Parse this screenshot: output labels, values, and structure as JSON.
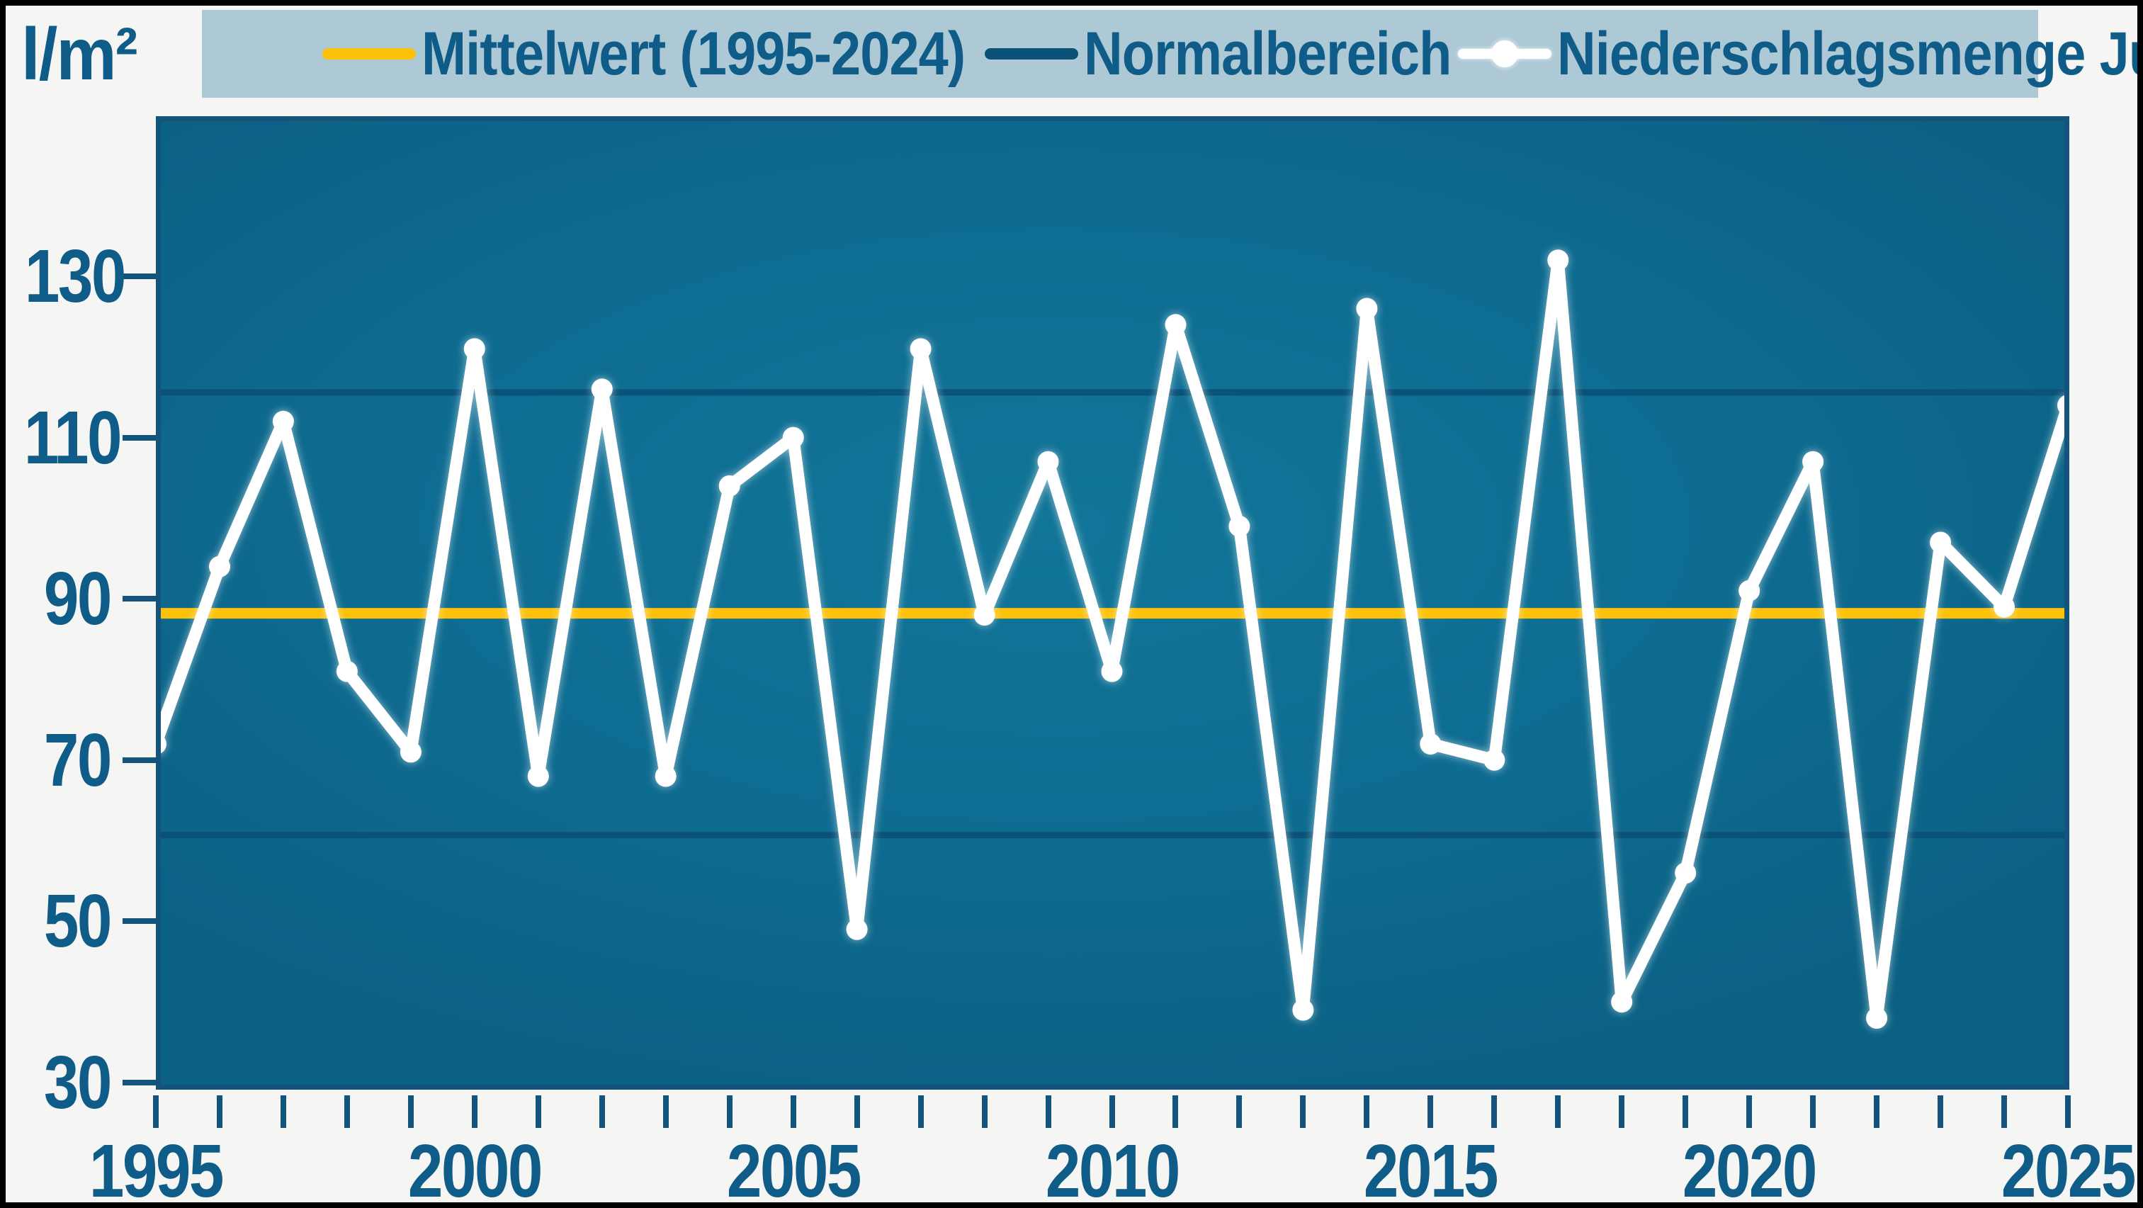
{
  "page": {
    "background": "#f5f5f3",
    "frame_color": "#000000",
    "text_color": "#0f5c88",
    "axis_color": "#14537c"
  },
  "unit_label": "l/m²",
  "legend": {
    "background": "#adc9d6",
    "items": [
      {
        "label": "Mittelwert (1995-2024)",
        "swatch": "yellow-line",
        "color": "#fdc10a",
        "offset_left": 170
      },
      {
        "label": "Normalbereich",
        "swatch": "navy-line",
        "color": "#0b5278",
        "offset_left": 1105
      },
      {
        "label": "Niederschlagsmenge Juli",
        "swatch": "white-line-marker",
        "color": "#ffffff",
        "offset_left": 1773
      }
    ]
  },
  "chart_data": {
    "type": "line",
    "title": "",
    "ylabel_unit": "l/m²",
    "xlim": [
      1995,
      2025
    ],
    "ylim": [
      30,
      148
    ],
    "y_ticks": [
      30,
      50,
      70,
      90,
      110,
      130
    ],
    "x_label_ticks": [
      1995,
      2000,
      2005,
      2010,
      2015,
      2020,
      2025
    ],
    "x_minor_tick_step": 1,
    "grid": "normal-range-lines-only",
    "legend_position": "top",
    "plot_background": "#0e6c91",
    "x_years": [
      1995,
      1996,
      1997,
      1998,
      1999,
      2000,
      2001,
      2002,
      2003,
      2004,
      2005,
      2006,
      2007,
      2008,
      2009,
      2010,
      2011,
      2012,
      2013,
      2014,
      2015,
      2016,
      2017,
      2018,
      2019,
      2020,
      2021,
      2022,
      2023,
      2024,
      2025
    ],
    "series": [
      {
        "name": "Mittelwert (1995-2024)",
        "type": "mean-hline",
        "value": 88.2,
        "color": "#fdc10a"
      },
      {
        "name": "Normalbereich",
        "type": "range-hlines",
        "lower": 60.7,
        "upper": 115.6,
        "color": "#0b5278"
      },
      {
        "name": "Niederschlagsmenge Juli",
        "type": "line-with-markers",
        "color": "#ffffff",
        "values": [
          72,
          94,
          112,
          81,
          71,
          121,
          68,
          116,
          68,
          104,
          110,
          49,
          121,
          88,
          107,
          81,
          124,
          99,
          39,
          126,
          72,
          70,
          132,
          40,
          56,
          91,
          107,
          38,
          97,
          89,
          114
        ]
      }
    ]
  }
}
